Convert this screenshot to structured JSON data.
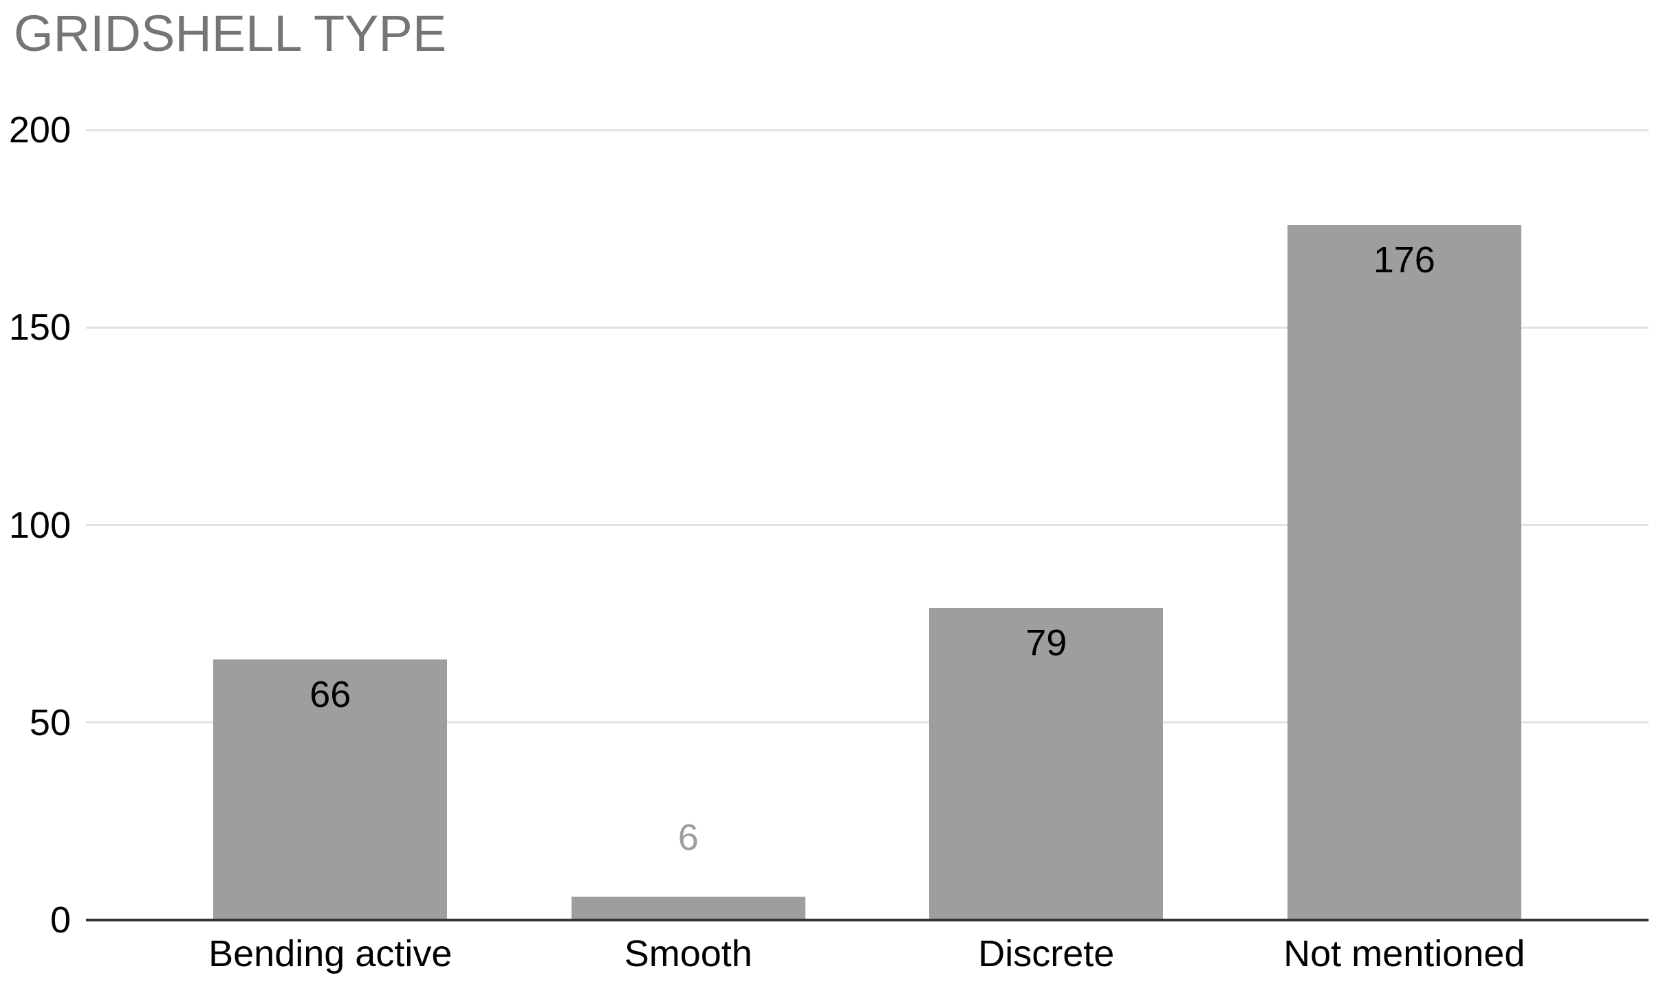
{
  "chart_data": {
    "type": "bar",
    "title": "GRIDSHELL TYPE",
    "categories": [
      "Bending active",
      "Smooth",
      "Discrete",
      "Not mentioned"
    ],
    "values": [
      66,
      6,
      79,
      176
    ],
    "value_labels": [
      "66",
      "6",
      "79",
      "176"
    ],
    "xlabel": "",
    "ylabel": "",
    "ylim": [
      0,
      200
    ],
    "yticks": [
      0,
      50,
      100,
      150,
      200
    ],
    "grid": true,
    "legend": "none",
    "colors": {
      "background": "#ffffff",
      "bar": "#9e9e9e",
      "title": "#757575",
      "axis_tick_label": "#000000",
      "category_label": "#000000",
      "value_label_inside": "#000000",
      "value_label_outside": "#9e9e9e",
      "gridline": "#e2e2e2",
      "baseline": "#333333"
    }
  }
}
